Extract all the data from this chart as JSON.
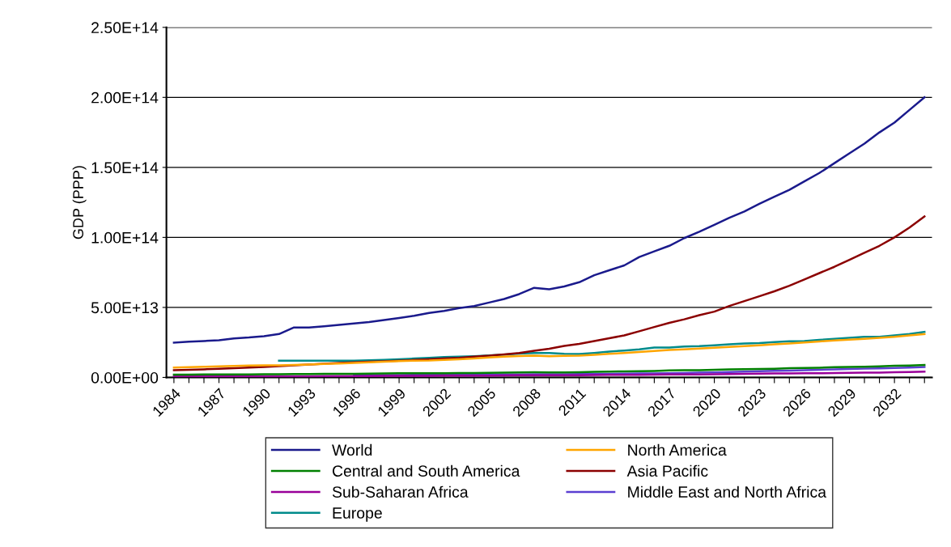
{
  "chart_data": {
    "type": "line",
    "ylabel": "GDP (PPP)",
    "categories": [
      "1984",
      null,
      null,
      "1987",
      null,
      null,
      "1990",
      null,
      null,
      "1993",
      null,
      null,
      "1996",
      null,
      null,
      "1999",
      null,
      null,
      "2002",
      null,
      null,
      "2005",
      null,
      null,
      "2008",
      null,
      null,
      "2011",
      null,
      null,
      "2014",
      null,
      null,
      "2017",
      null,
      null,
      "2020",
      null,
      null,
      "2023",
      null,
      null,
      "2026",
      null,
      null,
      "2029",
      null,
      null,
      "2032",
      null,
      null
    ],
    "ylim": [
      0,
      250000000000000.0
    ],
    "yticks": [
      {
        "value": 0,
        "label": "0.00E+00"
      },
      {
        "value": 50000000000000.0,
        "label": "5.00E+13"
      },
      {
        "value": 100000000000000.0,
        "label": "1.00E+14"
      },
      {
        "value": 150000000000000.0,
        "label": "1.50E+14"
      },
      {
        "value": 200000000000000.0,
        "label": "2.00E+14"
      },
      {
        "value": 250000000000000.0,
        "label": "2.50E+14"
      }
    ],
    "grid": "y",
    "legend": "bottom",
    "marker": "none",
    "line_style": "solid",
    "series": [
      {
        "name": "World",
        "color": "#1a1a8c",
        "values": [
          24800000000000.0,
          25500000000000.0,
          26000000000000.0,
          26500000000000.0,
          27800000000000.0,
          28500000000000.0,
          29500000000000.0,
          31000000000000.0,
          35700000000000.0,
          35700000000000.0,
          36500000000000.0,
          37500000000000.0,
          38500000000000.0,
          39500000000000.0,
          41000000000000.0,
          42500000000000.0,
          44000000000000.0,
          46000000000000.0,
          47500000000000.0,
          49500000000000.0,
          51000000000000.0,
          53500000000000.0,
          56000000000000.0,
          59500000000000.0,
          64000000000000.0,
          63000000000000.0,
          65000000000000.0,
          68000000000000.0,
          73000000000000.0,
          76500000000000.0,
          80000000000000.0,
          86000000000000.0,
          90000000000000.0,
          94000000000000.0,
          99500000000000.0,
          104000000000000.0,
          109000000000000.0,
          114000000000000.0,
          118500000000000.0,
          124000000000000.0,
          129000000000000.0,
          134000000000000.0,
          140000000000000.0,
          146000000000000.0,
          153000000000000.0,
          160000000000000.0,
          167000000000000.0,
          175000000000000.0,
          182000000000000.0,
          191000000000000.0,
          200000000000000.0
        ]
      },
      {
        "name": "North America",
        "color": "#ffa500",
        "values": [
          7000000000000.0,
          7300000000000.0,
          7600000000000.0,
          7900000000000.0,
          8200000000000.0,
          8500000000000.0,
          8600000000000.0,
          8600000000000.0,
          8900000000000.0,
          9200000000000.0,
          9600000000000.0,
          10000000000000.0,
          10400000000000.0,
          10800000000000.0,
          11200000000000.0,
          11600000000000.0,
          12000000000000.0,
          12100000000000.0,
          12500000000000.0,
          13000000000000.0,
          13600000000000.0,
          14200000000000.0,
          14800000000000.0,
          15300000000000.0,
          15500000000000.0,
          15200000000000.0,
          15400000000000.0,
          15600000000000.0,
          16200000000000.0,
          16800000000000.0,
          17500000000000.0,
          18200000000000.0,
          18900000000000.0,
          19600000000000.0,
          20000000000000.0,
          20600000000000.0,
          21200000000000.0,
          21800000000000.0,
          22400000000000.0,
          23000000000000.0,
          23700000000000.0,
          24300000000000.0,
          25000000000000.0,
          25700000000000.0,
          26400000000000.0,
          27000000000000.0,
          27600000000000.0,
          28300000000000.0,
          29000000000000.0,
          30000000000000.0,
          31000000000000.0
        ]
      },
      {
        "name": "Central and South America",
        "color": "#008000",
        "values": [
          2000000000000.0,
          2000000000000.0,
          2100000000000.0,
          2100000000000.0,
          2200000000000.0,
          2200000000000.0,
          2300000000000.0,
          2300000000000.0,
          2400000000000.0,
          2400000000000.0,
          2500000000000.0,
          2600000000000.0,
          2600000000000.0,
          2700000000000.0,
          2900000000000.0,
          3000000000000.0,
          3000000000000.0,
          3000000000000.0,
          3000000000000.0,
          3100000000000.0,
          3200000000000.0,
          3300000000000.0,
          3400000000000.0,
          3600000000000.0,
          3700000000000.0,
          3600000000000.0,
          3600000000000.0,
          3700000000000.0,
          4000000000000.0,
          4200000000000.0,
          4300000000000.0,
          4400000000000.0,
          4600000000000.0,
          5000000000000.0,
          5100000000000.0,
          5200000000000.0,
          5500000000000.0,
          5800000000000.0,
          5900000000000.0,
          6000000000000.0,
          6200000000000.0,
          6600000000000.0,
          6700000000000.0,
          6900000000000.0,
          7300000000000.0,
          7500000000000.0,
          7600000000000.0,
          7900000000000.0,
          8300000000000.0,
          8500000000000.0,
          8900000000000.0
        ]
      },
      {
        "name": "Asia Pacific",
        "color": "#8b0000",
        "values": [
          5200000000000.0,
          5500000000000.0,
          5800000000000.0,
          6200000000000.0,
          6600000000000.0,
          7000000000000.0,
          7500000000000.0,
          8000000000000.0,
          8600000000000.0,
          9200000000000.0,
          9800000000000.0,
          10300000000000.0,
          10800000000000.0,
          11200000000000.0,
          11500000000000.0,
          12000000000000.0,
          12500000000000.0,
          13000000000000.0,
          13500000000000.0,
          14000000000000.0,
          14800000000000.0,
          15500000000000.0,
          16500000000000.0,
          17500000000000.0,
          19000000000000.0,
          20500000000000.0,
          22500000000000.0,
          24000000000000.0,
          26000000000000.0,
          28000000000000.0,
          30000000000000.0,
          33000000000000.0,
          36000000000000.0,
          39000000000000.0,
          41500000000000.0,
          44500000000000.0,
          47000000000000.0,
          51000000000000.0,
          54500000000000.0,
          58000000000000.0,
          61500000000000.0,
          65500000000000.0,
          70000000000000.0,
          74500000000000.0,
          79000000000000.0,
          84000000000000.0,
          89000000000000.0,
          94000000000000.0,
          100000000000000.0,
          107000000000000.0,
          115000000000000.0
        ]
      },
      {
        "name": "Sub-Saharan Africa",
        "color": "#990099",
        "values": [
          800000000000.0,
          800000000000.0,
          800000000000.0,
          800000000000.0,
          900000000000.0,
          900000000000.0,
          900000000000.0,
          900000000000.0,
          900000000000.0,
          900000000000.0,
          1000000000000.0,
          1000000000000.0,
          1000000000000.0,
          1000000000000.0,
          1100000000000.0,
          1100000000000.0,
          1100000000000.0,
          1100000000000.0,
          1200000000000.0,
          1200000000000.0,
          1300000000000.0,
          1300000000000.0,
          1400000000000.0,
          1500000000000.0,
          1500000000000.0,
          1500000000000.0,
          1600000000000.0,
          1600000000000.0,
          1700000000000.0,
          1800000000000.0,
          1800000000000.0,
          1900000000000.0,
          2000000000000.0,
          2100000000000.0,
          2200000000000.0,
          2200000000000.0,
          2300000000000.0,
          2400000000000.0,
          2600000000000.0,
          2700000000000.0,
          2800000000000.0,
          2900000000000.0,
          3000000000000.0,
          3000000000000.0,
          3100000000000.0,
          3300000000000.0,
          3400000000000.0,
          3500000000000.0,
          3700000000000.0,
          3900000000000.0,
          4200000000000.0
        ]
      },
      {
        "name": "Middle East and North Africa",
        "color": "#5b3fd1",
        "values": [
          null,
          null,
          null,
          null,
          null,
          null,
          null,
          null,
          null,
          null,
          null,
          null,
          1600000000000.0,
          1600000000000.0,
          1700000000000.0,
          1700000000000.0,
          1800000000000.0,
          1800000000000.0,
          1900000000000.0,
          1900000000000.0,
          2000000000000.0,
          2000000000000.0,
          2100000000000.0,
          2200000000000.0,
          2300000000000.0,
          2300000000000.0,
          2300000000000.0,
          2400000000000.0,
          2500000000000.0,
          2600000000000.0,
          2700000000000.0,
          2800000000000.0,
          2900000000000.0,
          3000000000000.0,
          3200000000000.0,
          3400000000000.0,
          3600000000000.0,
          3900000000000.0,
          4100000000000.0,
          4400000000000.0,
          4700000000000.0,
          4900000000000.0,
          5200000000000.0,
          5500000000000.0,
          5700000000000.0,
          6000000000000.0,
          6300000000000.0,
          6500000000000.0,
          6800000000000.0,
          7100000000000.0,
          7500000000000.0
        ]
      },
      {
        "name": "Europe",
        "color": "#008b8b",
        "values": [
          null,
          null,
          null,
          null,
          null,
          null,
          null,
          12000000000000.0,
          12000000000000.0,
          12000000000000.0,
          12000000000000.0,
          12000000000000.0,
          12000000000000.0,
          12300000000000.0,
          12600000000000.0,
          13000000000000.0,
          13500000000000.0,
          14000000000000.0,
          14500000000000.0,
          14800000000000.0,
          15200000000000.0,
          15700000000000.0,
          16300000000000.0,
          17000000000000.0,
          17500000000000.0,
          17500000000000.0,
          16800000000000.0,
          16700000000000.0,
          17500000000000.0,
          18500000000000.0,
          19200000000000.0,
          20000000000000.0,
          21300000000000.0,
          21300000000000.0,
          22000000000000.0,
          22300000000000.0,
          23000000000000.0,
          23700000000000.0,
          24300000000000.0,
          24500000000000.0,
          25300000000000.0,
          25800000000000.0,
          26000000000000.0,
          26800000000000.0,
          27500000000000.0,
          28300000000000.0,
          29000000000000.0,
          29000000000000.0,
          30000000000000.0,
          31000000000000.0,
          32500000000000.0
        ]
      }
    ]
  }
}
